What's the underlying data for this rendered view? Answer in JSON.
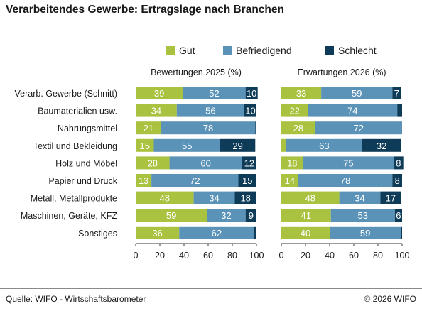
{
  "title": "Verarbeitendes Gewerbe: Ertragslage nach Branchen",
  "source": "Quelle: WIFO - Wirtschaftsbarometer",
  "copyright": "© 2026 WIFO",
  "colors": {
    "Gut": "#a9c23f",
    "Befriedigend": "#5b93b8",
    "Schlecht": "#0e3b57"
  },
  "chart_data": [
    {
      "type": "bar",
      "orientation": "horizontal",
      "stacked": true,
      "title": "Bewertungen 2025 (%)",
      "categories": [
        "Verarb. Gewerbe (Schnitt)",
        "Baumaterialien usw.",
        "Nahrungsmittel",
        "Textil und Bekleidung",
        "Holz und Möbel",
        "Papier und Druck",
        "Metall, Metallprodukte",
        "Maschinen, Geräte, KFZ",
        "Sonstiges"
      ],
      "series": [
        {
          "name": "Gut",
          "values": [
            39,
            34,
            21,
            15,
            28,
            13,
            48,
            59,
            36
          ]
        },
        {
          "name": "Befriedigend",
          "values": [
            52,
            56,
            78,
            55,
            60,
            72,
            34,
            32,
            62
          ]
        },
        {
          "name": "Schlecht",
          "values": [
            10,
            10,
            1,
            29,
            12,
            15,
            18,
            9,
            2
          ]
        }
      ],
      "show_label": [
        [
          true,
          true,
          true,
          true,
          true,
          true,
          true,
          true,
          true
        ],
        [
          true,
          true,
          true,
          true,
          true,
          true,
          true,
          true,
          true
        ],
        [
          true,
          true,
          false,
          true,
          true,
          true,
          true,
          true,
          false
        ]
      ],
      "xlim": [
        0,
        100
      ],
      "xticks": [
        0,
        20,
        40,
        60,
        80,
        100
      ],
      "legend": "top",
      "grid": false
    },
    {
      "type": "bar",
      "orientation": "horizontal",
      "stacked": true,
      "title": "Erwartungen 2026 (%)",
      "categories": [
        "Verarb. Gewerbe (Schnitt)",
        "Baumaterialien usw.",
        "Nahrungsmittel",
        "Textil und Bekleidung",
        "Holz und Möbel",
        "Papier und Druck",
        "Metall, Metallprodukte",
        "Maschinen, Geräte, KFZ",
        "Sonstiges"
      ],
      "series": [
        {
          "name": "Gut",
          "values": [
            33,
            22,
            28,
            4,
            18,
            14,
            48,
            41,
            40
          ]
        },
        {
          "name": "Befriedigend",
          "values": [
            59,
            74,
            72,
            63,
            75,
            78,
            34,
            53,
            59
          ]
        },
        {
          "name": "Schlecht",
          "values": [
            7,
            4,
            0,
            32,
            8,
            8,
            17,
            6,
            1
          ]
        }
      ],
      "show_label": [
        [
          true,
          true,
          true,
          false,
          true,
          true,
          true,
          true,
          true
        ],
        [
          true,
          true,
          true,
          true,
          true,
          true,
          true,
          true,
          true
        ],
        [
          true,
          false,
          false,
          true,
          true,
          true,
          true,
          true,
          false
        ]
      ],
      "xlim": [
        0,
        100
      ],
      "xticks": [
        0,
        20,
        40,
        60,
        80,
        100
      ],
      "legend": "top",
      "grid": false
    }
  ]
}
